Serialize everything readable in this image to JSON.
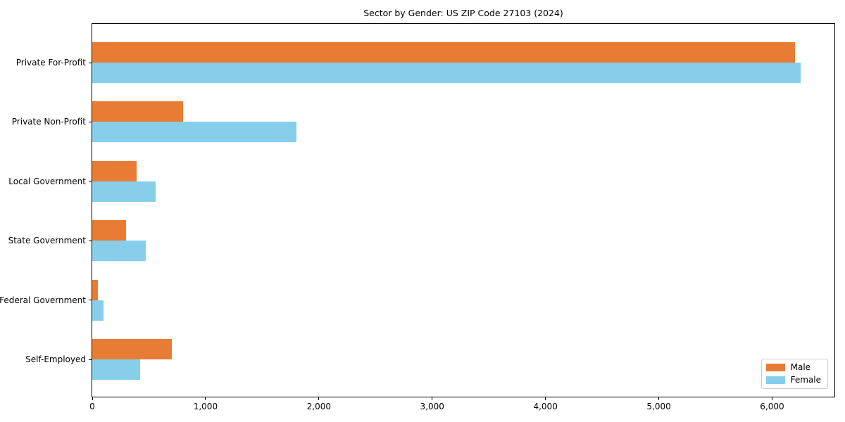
{
  "figure": {
    "background": "#ffffff",
    "spine_color": "#000000"
  },
  "chart_data": {
    "type": "bar",
    "orientation": "horizontal",
    "title": "Sector by Gender: US ZIP Code 27103 (2024)",
    "categories": [
      "Private For-Profit",
      "Private Non-Profit",
      "Local Government",
      "State Government",
      "Federal Government",
      "Self-Employed"
    ],
    "series": [
      {
        "name": "Male",
        "color": "#E87C35",
        "values": [
          6200,
          800,
          390,
          300,
          50,
          700
        ]
      },
      {
        "name": "Female",
        "color": "#87CEEB",
        "values": [
          6250,
          1800,
          560,
          470,
          100,
          420
        ]
      }
    ],
    "xlabel": "",
    "ylabel": "",
    "xlim": [
      0,
      6550
    ],
    "xticks": [
      0,
      1000,
      2000,
      3000,
      4000,
      5000,
      6000
    ],
    "xtick_labels": [
      "0",
      "1,000",
      "2,000",
      "3,000",
      "4,000",
      "5,000",
      "6,000"
    ],
    "grid": false,
    "legend": {
      "position": "lower right",
      "entries": [
        "Male",
        "Female"
      ]
    }
  }
}
